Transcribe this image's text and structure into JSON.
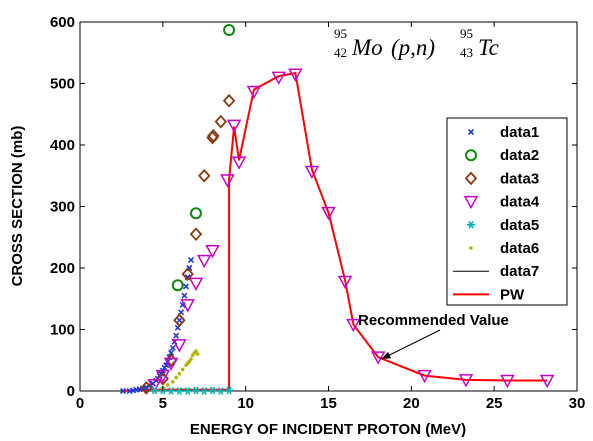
{
  "chart_data": {
    "type": "scatter",
    "xlabel": "ENERGY OF INCIDENT PROTON (MeV)",
    "ylabel": "CROSS SECTION (mb)",
    "xlim": [
      0,
      30
    ],
    "ylim": [
      0,
      600
    ],
    "xticks": [
      "0",
      "5",
      "10",
      "15",
      "20",
      "25",
      "30"
    ],
    "yticks": [
      "0",
      "100",
      "200",
      "300",
      "400",
      "500",
      "600"
    ],
    "grid": false,
    "legend_position": "right",
    "reaction_label": {
      "a_mass": "95",
      "a_z": "42",
      "a_sym": "Mo",
      "mid": "(p,n)",
      "b_mass": "95",
      "b_z": "43",
      "b_sym": "Tc"
    },
    "annotation": {
      "text": "Recommended Value",
      "x": 18.2,
      "y": 52
    },
    "series": [
      {
        "name": "data1",
        "marker": "x",
        "color": "#1f3bd9",
        "points": [
          [
            2.6,
            0
          ],
          [
            3,
            0
          ],
          [
            3.2,
            1
          ],
          [
            3.4,
            2
          ],
          [
            3.6,
            3
          ],
          [
            3.8,
            4
          ],
          [
            4.0,
            6
          ],
          [
            4.2,
            9
          ],
          [
            4.4,
            12
          ],
          [
            4.6,
            17
          ],
          [
            4.7,
            20
          ],
          [
            4.8,
            25
          ],
          [
            4.9,
            28
          ],
          [
            5.0,
            33
          ],
          [
            5.1,
            38
          ],
          [
            5.2,
            42
          ],
          [
            5.3,
            48
          ],
          [
            5.4,
            55
          ],
          [
            5.5,
            62
          ],
          [
            5.6,
            70
          ],
          [
            5.7,
            80
          ],
          [
            5.8,
            90
          ],
          [
            5.9,
            103
          ],
          [
            6.0,
            115
          ],
          [
            6.1,
            128
          ],
          [
            6.2,
            140
          ],
          [
            6.3,
            155
          ],
          [
            6.4,
            170
          ],
          [
            6.5,
            185
          ],
          [
            6.6,
            200
          ],
          [
            6.7,
            213
          ]
        ]
      },
      {
        "name": "data2",
        "marker": "o",
        "color": "#0a8a0a",
        "points": [
          [
            5.9,
            172
          ],
          [
            7.0,
            289
          ],
          [
            9.0,
            587
          ]
        ]
      },
      {
        "name": "data3",
        "marker": "diamond",
        "color": "#8b3a0f",
        "points": [
          [
            4.0,
            5
          ],
          [
            5.0,
            20
          ],
          [
            5.5,
            50
          ],
          [
            6.0,
            115
          ],
          [
            6.5,
            190
          ],
          [
            7.0,
            255
          ],
          [
            7.5,
            350
          ],
          [
            8.0,
            412
          ],
          [
            8.05,
            415
          ],
          [
            8.5,
            438
          ],
          [
            9.0,
            472
          ]
        ]
      },
      {
        "name": "data4",
        "marker": "triangle-down",
        "color": "#c800c8",
        "points": [
          [
            4.5,
            10
          ],
          [
            5.0,
            25
          ],
          [
            5.5,
            45
          ],
          [
            6.0,
            75
          ],
          [
            6.5,
            140
          ],
          [
            7.0,
            175
          ],
          [
            7.5,
            212
          ],
          [
            8.0,
            228
          ],
          [
            8.9,
            343
          ],
          [
            9.3,
            432
          ],
          [
            9.6,
            372
          ],
          [
            10.5,
            487
          ],
          [
            12.0,
            510
          ],
          [
            13.0,
            515
          ],
          [
            14.0,
            357
          ],
          [
            15.0,
            290
          ],
          [
            16.0,
            178
          ],
          [
            16.5,
            108
          ],
          [
            18.0,
            55
          ],
          [
            20.8,
            25
          ],
          [
            23.3,
            18
          ],
          [
            25.8,
            17
          ],
          [
            28.2,
            17
          ]
        ]
      },
      {
        "name": "data5",
        "marker": "star",
        "color": "#00b4b4",
        "points": [
          [
            4.5,
            1
          ],
          [
            5.0,
            1
          ],
          [
            5.5,
            0
          ],
          [
            6.0,
            0
          ],
          [
            6.5,
            0
          ],
          [
            7.0,
            1
          ],
          [
            7.5,
            0
          ],
          [
            8.0,
            1
          ],
          [
            8.5,
            0
          ],
          [
            9.0,
            1
          ]
        ]
      },
      {
        "name": "data6",
        "marker": "dot",
        "color": "#b4b400",
        "points": [
          [
            5.0,
            5
          ],
          [
            5.3,
            10
          ],
          [
            5.6,
            15
          ],
          [
            5.8,
            22
          ],
          [
            6.0,
            28
          ],
          [
            6.2,
            35
          ],
          [
            6.4,
            42
          ],
          [
            6.5,
            45
          ],
          [
            6.6,
            48
          ],
          [
            6.7,
            52
          ],
          [
            6.8,
            58
          ],
          [
            6.9,
            62
          ],
          [
            7.0,
            65
          ],
          [
            7.1,
            60
          ]
        ]
      },
      {
        "name": "data7",
        "marker": "line",
        "color": "#000000",
        "points": []
      },
      {
        "name": "PW",
        "marker": "line",
        "color": "#ff0000",
        "points": [
          [
            2.6,
            0
          ],
          [
            3.5,
            1
          ],
          [
            4.5,
            2
          ],
          [
            5.5,
            2
          ],
          [
            6.5,
            2
          ],
          [
            7.5,
            2
          ],
          [
            8.5,
            2
          ],
          [
            9.0,
            2
          ],
          [
            9.0,
            345
          ],
          [
            9.3,
            430
          ],
          [
            9.6,
            375
          ],
          [
            10.5,
            490
          ],
          [
            12.0,
            512
          ],
          [
            13.0,
            517
          ],
          [
            14.0,
            360
          ],
          [
            15.0,
            290
          ],
          [
            16.0,
            180
          ],
          [
            16.5,
            108
          ],
          [
            18.0,
            55
          ],
          [
            20.8,
            25
          ],
          [
            23.3,
            18
          ],
          [
            25.8,
            17
          ],
          [
            28.2,
            17
          ]
        ]
      }
    ]
  }
}
